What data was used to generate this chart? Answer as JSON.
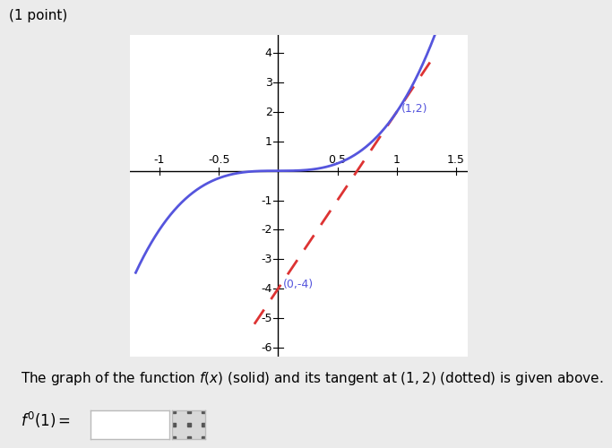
{
  "title": "(1 point)",
  "xlim": [
    -1.25,
    1.6
  ],
  "ylim": [
    -6.3,
    4.6
  ],
  "xticks": [
    -1,
    -0.5,
    0.5,
    1,
    1.5
  ],
  "yticks": [
    -6,
    -5,
    -4,
    -3,
    -2,
    -1,
    1,
    2,
    3,
    4
  ],
  "curve_color": "#5555dd",
  "tangent_color": "#dd3333",
  "tangent_slope": 6,
  "tangent_intercept": -4,
  "tangent_x_start": -0.2,
  "tangent_x_end": 1.28,
  "point_label": "(1,2)",
  "tangent_label": "(0,-4)",
  "background_color": "#ebebeb",
  "plot_background": "#ffffff",
  "font_size_title": 11,
  "font_size_annot": 9,
  "font_size_bottom": 11,
  "font_size_fprime": 12,
  "bottom_text": "The graph of the function $f(x)$ (solid) and its tangent at $(1, 2)$ (dotted) is given above.",
  "fprime_label": "$f'(1) =$"
}
